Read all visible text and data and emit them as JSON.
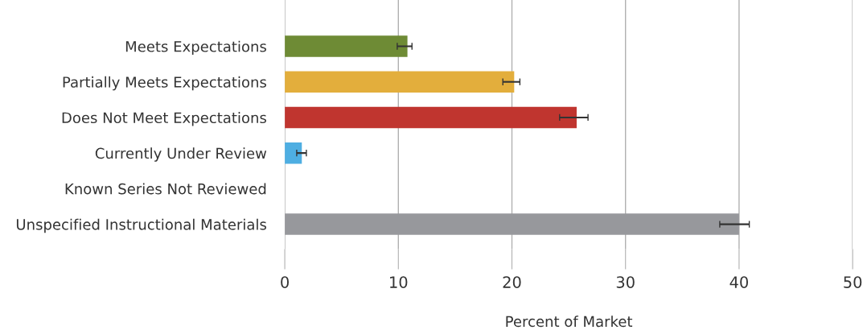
{
  "chart_data": {
    "type": "bar",
    "orientation": "horizontal",
    "xlabel": "Percent of Market",
    "categories": [
      "Meets Expectations",
      "Partially Meets Expectations",
      "Does Not Meet Expectations",
      "Currently Under Review",
      "Known Series Not Reviewed",
      "Unspecified Instructional Materials"
    ],
    "values": [
      10.8,
      20.2,
      25.7,
      1.5,
      null,
      40.0
    ],
    "errors": [
      [
        9.9,
        11.2
      ],
      [
        19.2,
        20.7
      ],
      [
        24.2,
        26.7
      ],
      [
        1.05,
        1.9
      ],
      null,
      [
        38.3,
        40.9
      ]
    ],
    "colors": [
      "#6e8b35",
      "#e3ae3c",
      "#c0352f",
      "#4eaee2",
      "#97989c",
      "#97989c"
    ],
    "xlim": [
      0,
      50
    ],
    "xticks": [
      0,
      10,
      20,
      30,
      40,
      50
    ],
    "grid": "x",
    "legend": false
  }
}
